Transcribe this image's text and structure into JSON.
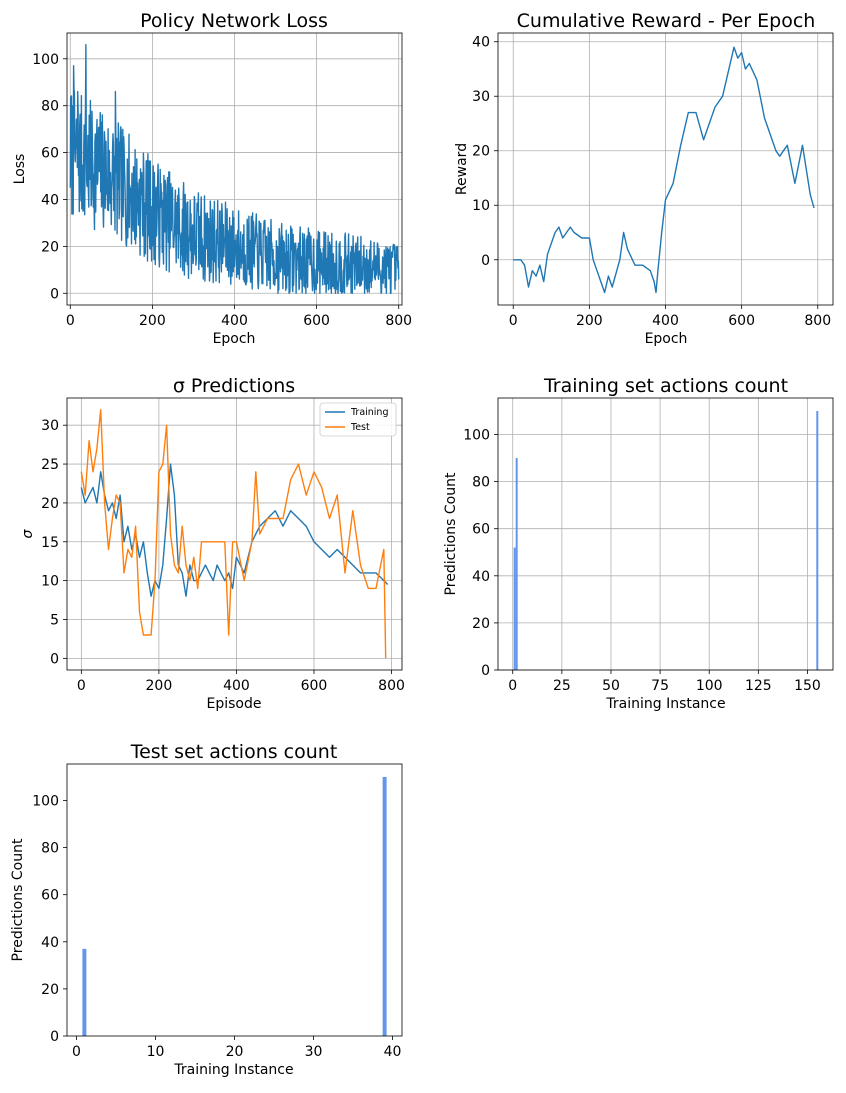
{
  "colors": {
    "series1": "#1f77b4",
    "series2": "#ff7f0e",
    "bars": "#6495ed",
    "grid": "#b0b0b0"
  },
  "chart_data": [
    {
      "id": "loss",
      "type": "line",
      "title": "Policy Network Loss",
      "xlabel": "Epoch",
      "ylabel": "Loss",
      "xlim": [
        -8,
        808
      ],
      "ylim": [
        -5,
        111
      ],
      "xticks": [
        0,
        200,
        400,
        600,
        800
      ],
      "yticks": [
        0,
        20,
        40,
        60,
        80,
        100
      ],
      "grid": true,
      "series": [
        {
          "style": "noisy-decay",
          "samples": 800,
          "x_range": [
            0,
            800
          ],
          "trend": [
            [
              0,
              60
            ],
            [
              100,
              50
            ],
            [
              200,
              35
            ],
            [
              300,
              25
            ],
            [
              400,
              20
            ],
            [
              500,
              15
            ],
            [
              600,
              13
            ],
            [
              700,
              12
            ],
            [
              800,
              10
            ]
          ],
          "amplitude": [
            [
              0,
              25
            ],
            [
              200,
              20
            ],
            [
              400,
              15
            ],
            [
              800,
              10
            ]
          ],
          "min": 0,
          "spikes": [
            [
              8,
              97
            ],
            [
              18,
              86
            ],
            [
              38,
              106
            ],
            [
              110,
              86
            ]
          ],
          "color": "#1f77b4"
        }
      ]
    },
    {
      "id": "reward",
      "type": "line",
      "title": "Cumulative Reward - Per Epoch",
      "xlabel": "Epoch",
      "ylabel": "Reward",
      "xlim": [
        -40,
        840
      ],
      "ylim": [
        -8.3,
        41.6
      ],
      "xticks": [
        0,
        200,
        400,
        600,
        800
      ],
      "yticks": [
        0,
        10,
        20,
        30,
        40
      ],
      "grid": true,
      "series": [
        {
          "x": [
            0,
            20,
            30,
            40,
            50,
            60,
            70,
            80,
            90,
            100,
            110,
            120,
            130,
            150,
            160,
            180,
            200,
            210,
            220,
            230,
            240,
            250,
            260,
            280,
            290,
            300,
            320,
            340,
            360,
            370,
            375,
            380,
            390,
            400,
            420,
            440,
            460,
            470,
            480,
            500,
            510,
            530,
            550,
            570,
            580,
            590,
            600,
            610,
            620,
            640,
            660,
            670,
            690,
            700,
            710,
            720,
            740,
            760,
            780,
            790
          ],
          "y": [
            0,
            0,
            -1,
            -5,
            -2,
            -3,
            -1,
            -4,
            1,
            3,
            5,
            6,
            4,
            6,
            5,
            4,
            4,
            0,
            -2,
            -4,
            -6,
            -3,
            -5,
            0,
            5,
            2,
            -1,
            -1,
            -2,
            -4,
            -6,
            -2,
            5,
            11,
            14,
            21,
            27,
            27,
            27,
            22,
            24,
            28,
            30,
            36,
            39,
            37,
            38,
            35,
            36,
            33,
            26,
            24,
            20,
            19,
            20,
            21,
            14,
            21,
            12,
            9.5
          ],
          "color": "#1f77b4"
        }
      ]
    },
    {
      "id": "sigma",
      "type": "line",
      "title": "σ Predictions",
      "xlabel": "Episode",
      "ylabel": "σ",
      "xlim": [
        -37,
        827
      ],
      "ylim": [
        -1.5,
        33.5
      ],
      "xticks": [
        0,
        200,
        400,
        600,
        800
      ],
      "yticks": [
        0,
        5,
        10,
        15,
        20,
        25,
        30
      ],
      "grid": true,
      "legend": "upper-right",
      "series": [
        {
          "name": "Training",
          "x": [
            0,
            10,
            20,
            30,
            40,
            50,
            60,
            70,
            80,
            90,
            100,
            110,
            120,
            130,
            140,
            150,
            160,
            170,
            180,
            190,
            200,
            210,
            220,
            230,
            240,
            250,
            260,
            270,
            280,
            290,
            300,
            310,
            320,
            330,
            340,
            350,
            360,
            370,
            380,
            390,
            400,
            420,
            440,
            460,
            480,
            500,
            520,
            540,
            560,
            580,
            600,
            620,
            640,
            660,
            680,
            700,
            720,
            740,
            760,
            780,
            790
          ],
          "y": [
            22,
            20,
            21,
            22,
            20,
            24,
            21,
            19,
            20,
            18,
            21,
            15,
            17,
            14,
            16,
            13,
            15,
            11,
            8,
            10,
            9,
            12,
            18,
            25,
            21,
            12,
            11,
            8,
            12,
            10,
            10,
            11,
            12,
            11,
            10,
            12,
            11,
            10,
            11,
            9,
            13,
            11,
            15,
            17,
            18,
            19,
            17,
            19,
            18,
            17,
            15,
            14,
            13,
            14,
            13,
            12,
            11,
            11,
            11,
            10,
            9.5
          ],
          "color": "#1f77b4"
        },
        {
          "name": "Test",
          "x": [
            0,
            10,
            20,
            30,
            40,
            50,
            60,
            70,
            80,
            90,
            100,
            110,
            120,
            130,
            140,
            150,
            160,
            170,
            180,
            190,
            200,
            210,
            220,
            230,
            240,
            250,
            260,
            270,
            280,
            290,
            300,
            310,
            320,
            330,
            340,
            350,
            360,
            370,
            380,
            390,
            400,
            420,
            440,
            450,
            460,
            480,
            500,
            520,
            540,
            560,
            580,
            600,
            620,
            640,
            660,
            680,
            700,
            720,
            740,
            760,
            780,
            785
          ],
          "y": [
            24,
            21,
            28,
            24,
            27,
            32,
            20,
            14,
            18,
            21,
            20,
            11,
            14,
            13,
            17,
            6,
            3,
            3,
            3,
            10,
            24,
            25,
            30,
            16,
            12,
            11,
            17,
            12,
            10,
            13,
            9,
            15,
            15,
            15,
            15,
            15,
            15,
            15,
            3,
            15,
            15,
            10,
            15,
            24,
            16,
            18,
            18,
            18,
            23,
            25,
            21,
            24,
            22,
            18,
            21,
            11,
            19,
            12,
            9,
            9,
            14,
            0
          ],
          "color": "#ff7f0e"
        }
      ]
    },
    {
      "id": "train-actions",
      "type": "bar",
      "title": "Training set actions count",
      "xlabel": "Training Instance",
      "ylabel": "Predictions Count",
      "xlim": [
        -7.5,
        163
      ],
      "ylim": [
        0,
        115.5
      ],
      "xticks": [
        0,
        25,
        50,
        75,
        100,
        125,
        150
      ],
      "yticks": [
        0,
        20,
        40,
        60,
        80,
        100
      ],
      "grid": true,
      "bar_width": 1,
      "x": [
        1,
        2,
        155
      ],
      "values": [
        52,
        90,
        110
      ],
      "color": "#6495ed"
    },
    {
      "id": "test-actions",
      "type": "bar",
      "title": "Test set actions count",
      "xlabel": "Training Instance",
      "ylabel": "Predictions Count",
      "xlim": [
        -1.2,
        41.2
      ],
      "ylim": [
        0,
        115.5
      ],
      "xticks": [
        0,
        10,
        20,
        30,
        40
      ],
      "yticks": [
        0,
        20,
        40,
        60,
        80,
        100
      ],
      "grid": false,
      "bar_width": 0.5,
      "x": [
        1,
        39
      ],
      "values": [
        37,
        110
      ],
      "color": "#6495ed"
    }
  ]
}
